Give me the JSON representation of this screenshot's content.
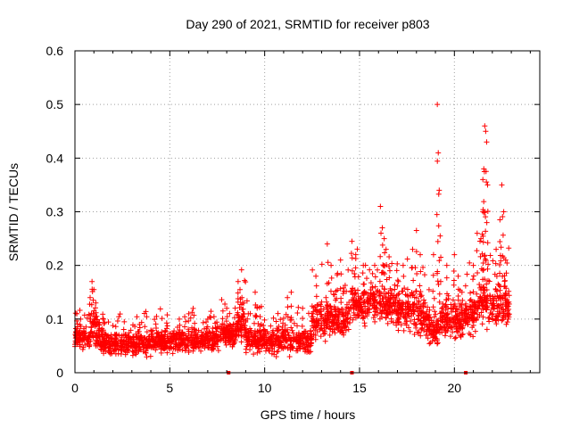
{
  "chart_data": {
    "type": "scatter",
    "title": "Day 290 of 2021, SRMTID for receiver p803",
    "xlabel": "GPS time / hours",
    "ylabel": "SRMTID / TECUs",
    "xlim": [
      0,
      24.5
    ],
    "ylim": [
      0,
      0.6
    ],
    "grid": true,
    "marker": "+",
    "color": "#ff0000",
    "x_ticks": [
      {
        "value": 0,
        "label": "0"
      },
      {
        "value": 5,
        "label": "5"
      },
      {
        "value": 10,
        "label": "10"
      },
      {
        "value": 15,
        "label": "15"
      },
      {
        "value": 20,
        "label": "20"
      }
    ],
    "y_ticks": [
      {
        "value": 0,
        "label": "0"
      },
      {
        "value": 0.1,
        "label": "0.1"
      },
      {
        "value": 0.2,
        "label": "0.2"
      },
      {
        "value": 0.3,
        "label": "0.3"
      },
      {
        "value": 0.4,
        "label": "0.4"
      },
      {
        "value": 0.5,
        "label": "0.5"
      },
      {
        "value": 0.6,
        "label": "0.6"
      }
    ],
    "gap_markers": [
      8.1,
      14.6,
      20.6
    ],
    "series": [
      {
        "name": "SRMTID",
        "segments": [
          {
            "x_range": [
              0.0,
              0.8
            ],
            "base": 0.065,
            "spread": 0.03,
            "spikes": [
              [
                0.1,
                0.11
              ],
              [
                0.3,
                0.1
              ]
            ]
          },
          {
            "x_range": [
              0.8,
              1.3
            ],
            "base": 0.075,
            "spread": 0.04,
            "spikes": [
              [
                0.9,
                0.17
              ],
              [
                1.0,
                0.155
              ],
              [
                0.8,
                0.14
              ],
              [
                1.1,
                0.13
              ]
            ]
          },
          {
            "x_range": [
              1.3,
              4.0
            ],
            "base": 0.055,
            "spread": 0.03,
            "spikes": [
              [
                1.5,
                0.1
              ],
              [
                2.6,
                0.095
              ],
              [
                3.4,
                0.09
              ]
            ]
          },
          {
            "x_range": [
              4.0,
              7.5
            ],
            "base": 0.06,
            "spread": 0.03,
            "spikes": [
              [
                4.3,
                0.105
              ],
              [
                5.5,
                0.1
              ],
              [
                6.0,
                0.11
              ],
              [
                7.0,
                0.1
              ]
            ]
          },
          {
            "x_range": [
              7.5,
              8.5
            ],
            "base": 0.07,
            "spread": 0.035,
            "spikes": [
              [
                8.0,
                0.12
              ],
              [
                7.8,
                0.115
              ]
            ]
          },
          {
            "x_range": [
              8.5,
              9.0
            ],
            "base": 0.09,
            "spread": 0.045,
            "spikes": [
              [
                8.6,
                0.17
              ],
              [
                8.7,
                0.155
              ],
              [
                8.8,
                0.14
              ],
              [
                8.9,
                0.13
              ]
            ]
          },
          {
            "x_range": [
              9.0,
              12.5
            ],
            "base": 0.06,
            "spread": 0.035,
            "spikes": [
              [
                9.5,
                0.15
              ],
              [
                11.2,
                0.14
              ],
              [
                11.4,
                0.15
              ],
              [
                12.0,
                0.12
              ]
            ]
          },
          {
            "x_range": [
              12.5,
              14.5
            ],
            "base": 0.1,
            "spread": 0.05,
            "spikes": [
              [
                12.7,
                0.18
              ],
              [
                13.3,
                0.24
              ],
              [
                13.5,
                0.2
              ],
              [
                14.0,
                0.21
              ]
            ]
          },
          {
            "x_range": [
              14.5,
              16.0
            ],
            "base": 0.13,
            "spread": 0.05,
            "spikes": [
              [
                14.6,
                0.245
              ],
              [
                14.8,
                0.22
              ],
              [
                15.2,
                0.2
              ],
              [
                15.8,
                0.2
              ]
            ]
          },
          {
            "x_range": [
              16.0,
              17.0
            ],
            "base": 0.125,
            "spread": 0.05,
            "spikes": [
              [
                16.1,
                0.31
              ],
              [
                16.2,
                0.27
              ],
              [
                16.3,
                0.25
              ],
              [
                16.4,
                0.23
              ],
              [
                16.6,
                0.19
              ]
            ]
          },
          {
            "x_range": [
              17.0,
              18.5
            ],
            "base": 0.11,
            "spread": 0.055,
            "spikes": [
              [
                17.3,
                0.2
              ],
              [
                17.8,
                0.23
              ],
              [
                18.0,
                0.265
              ],
              [
                18.2,
                0.22
              ]
            ]
          },
          {
            "x_range": [
              18.5,
              19.3
            ],
            "base": 0.085,
            "spread": 0.045,
            "spikes": [
              [
                19.1,
                0.5
              ],
              [
                19.15,
                0.41
              ],
              [
                19.2,
                0.34
              ],
              [
                19.25,
                0.255
              ],
              [
                18.9,
                0.22
              ]
            ]
          },
          {
            "x_range": [
              19.3,
              20.5
            ],
            "base": 0.1,
            "spread": 0.05,
            "spikes": [
              [
                19.6,
                0.2
              ],
              [
                20.0,
                0.22
              ],
              [
                20.2,
                0.18
              ],
              [
                20.4,
                0.15
              ]
            ]
          },
          {
            "x_range": [
              20.5,
              21.3
            ],
            "base": 0.11,
            "spread": 0.05,
            "spikes": [
              [
                21.0,
                0.2
              ],
              [
                21.2,
                0.26
              ]
            ]
          },
          {
            "x_range": [
              21.3,
              21.9
            ],
            "base": 0.135,
            "spread": 0.06,
            "spikes": [
              [
                21.6,
                0.46
              ],
              [
                21.65,
                0.45
              ],
              [
                21.7,
                0.43
              ],
              [
                21.55,
                0.38
              ],
              [
                21.5,
                0.36
              ],
              [
                21.75,
                0.35
              ],
              [
                21.5,
                0.3
              ],
              [
                21.6,
                0.3
              ],
              [
                21.4,
                0.25
              ]
            ]
          },
          {
            "x_range": [
              21.9,
              22.9
            ],
            "base": 0.125,
            "spread": 0.055,
            "spikes": [
              [
                22.2,
                0.23
              ],
              [
                22.4,
                0.285
              ],
              [
                22.5,
                0.35
              ],
              [
                22.6,
                0.3
              ],
              [
                22.7,
                0.21
              ]
            ]
          }
        ]
      }
    ]
  }
}
